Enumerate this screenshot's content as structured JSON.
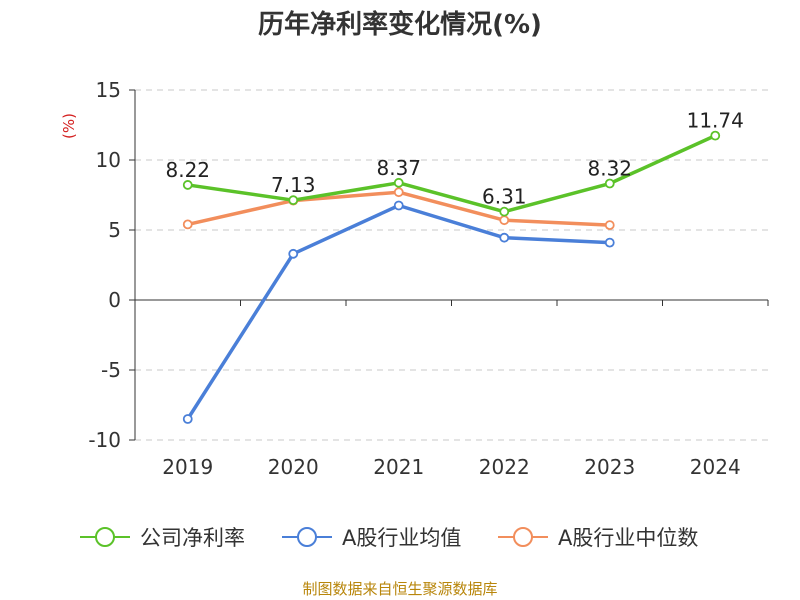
{
  "chart_data": {
    "type": "line",
    "title": "历年净利率变化情况(%)",
    "ylabel": "(%)",
    "categories": [
      "2019",
      "2020",
      "2021",
      "2022",
      "2023",
      "2024"
    ],
    "ylim": [
      -10,
      15
    ],
    "yticks": [
      15,
      10,
      5,
      0,
      -5,
      -10
    ],
    "grid": true,
    "legend_position": "bottom",
    "series": [
      {
        "name": "公司净利率",
        "color": "#5bc229",
        "values": [
          8.22,
          7.13,
          8.37,
          6.31,
          8.32,
          11.74
        ],
        "labels": [
          "8.22",
          "7.13",
          "8.37",
          "6.31",
          "8.32",
          "11.74"
        ]
      },
      {
        "name": "A股行业均值",
        "color": "#4a7fd8",
        "values": [
          -8.5,
          3.3,
          6.75,
          4.45,
          4.1,
          null
        ],
        "labels": []
      },
      {
        "name": "A股行业中位数",
        "color": "#f28e5c",
        "values": [
          5.4,
          7.1,
          7.7,
          5.7,
          5.35,
          null
        ],
        "labels": []
      }
    ]
  },
  "source": "制图数据来自恒生聚源数据库"
}
